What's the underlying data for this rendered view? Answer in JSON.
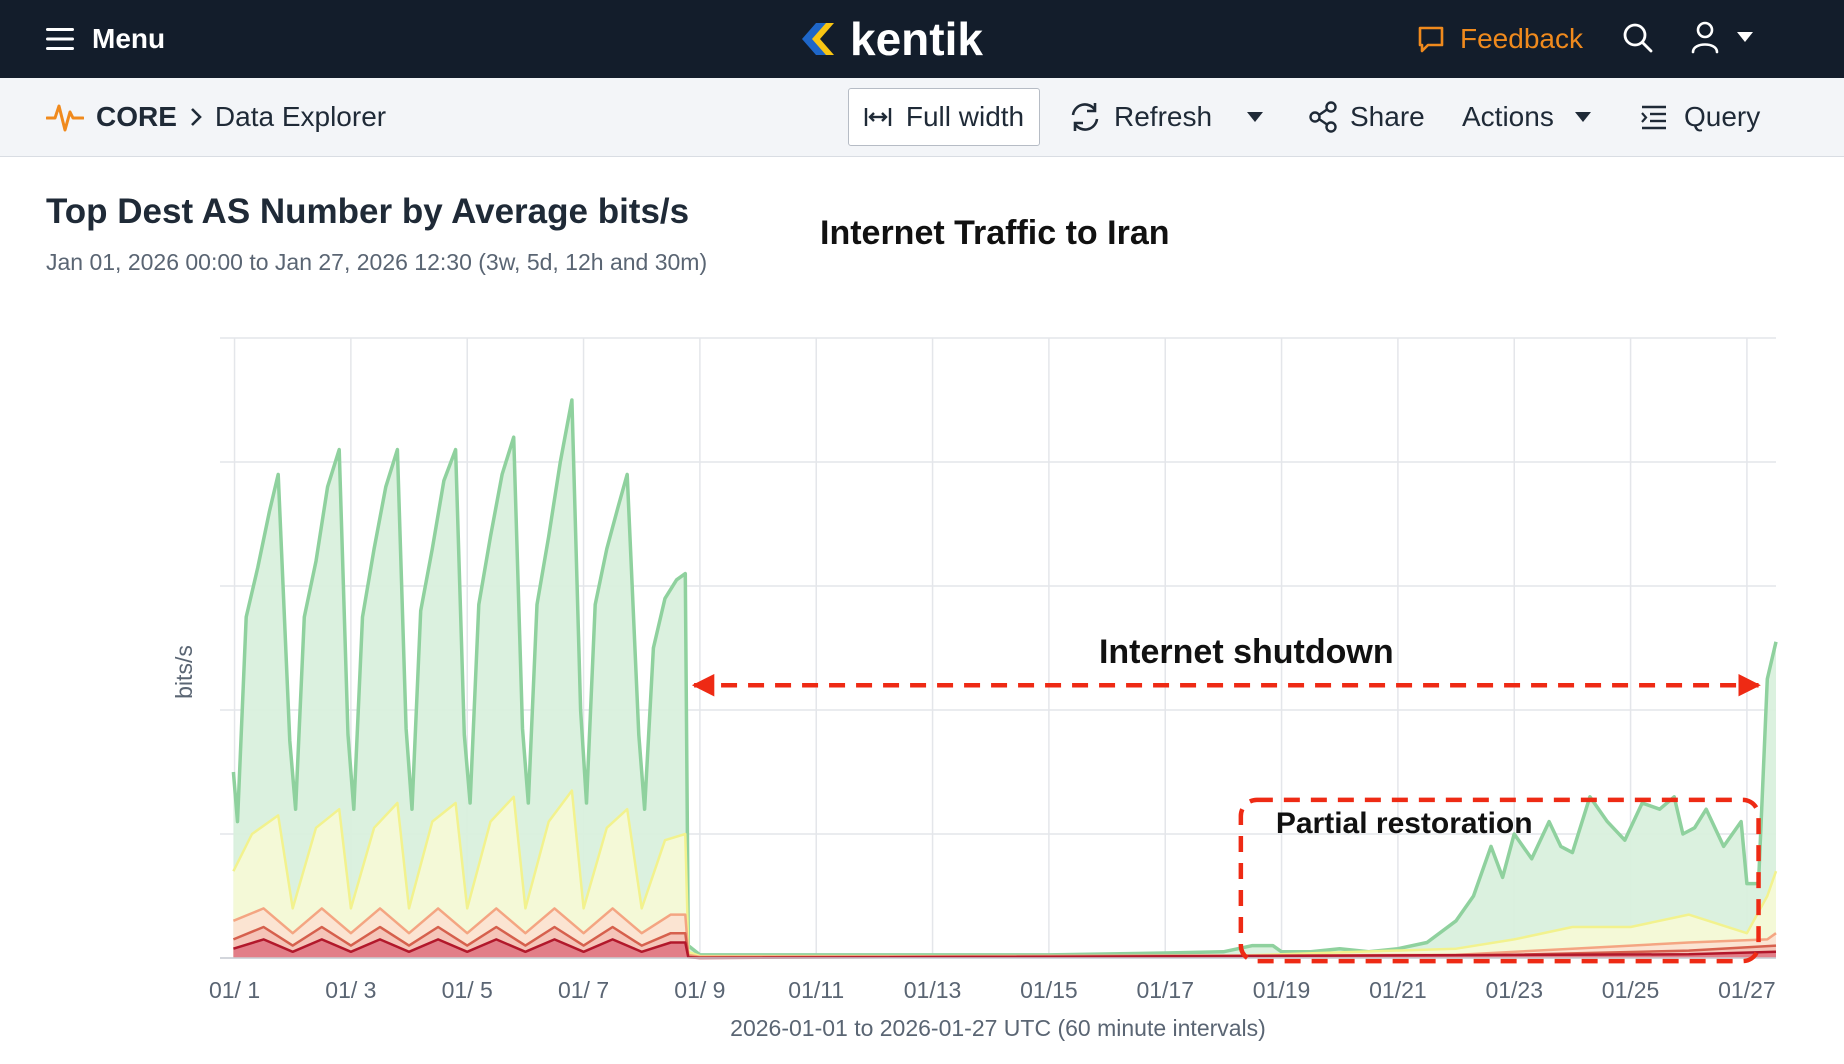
{
  "topbar": {
    "menu_label": "Menu",
    "logo_text": "kentik",
    "feedback_label": "Feedback",
    "brand_color": "#f08a1d"
  },
  "subbar": {
    "section": "CORE",
    "page": "Data Explorer",
    "full_width_label": "Full width",
    "refresh_label": "Refresh",
    "share_label": "Share",
    "actions_label": "Actions",
    "query_label": "Query"
  },
  "chart": {
    "title": "Top Dest AS Number by Average bits/s",
    "subtitle": "Jan 01, 2026 00:00 to Jan 27, 2026 12:30 (3w, 5d, 12h and 30m)",
    "overlay_title": "Internet Traffic to Iran",
    "shutdown_label": "Internet shutdown",
    "restoration_label": "Partial restoration",
    "annotation_color": "#ee2a14"
  },
  "chart_data": {
    "type": "area",
    "title": "Top Dest AS Number by Average bits/s",
    "xlabel": "2026-01-01 to 2026-01-27 UTC (60 minute intervals)",
    "ylabel": "bits/s",
    "x_tick_labels": [
      "01/ 1",
      "01/ 3",
      "01/ 5",
      "01/ 7",
      "01/ 9",
      "01/11",
      "01/13",
      "01/15",
      "01/17",
      "01/19",
      "01/21",
      "01/23",
      "01/25",
      "01/27"
    ],
    "x_tick_days": [
      1,
      3,
      5,
      7,
      9,
      11,
      13,
      15,
      17,
      19,
      21,
      23,
      25,
      27
    ],
    "xlim": [
      0.75,
      27.5
    ],
    "ylim": [
      0,
      100
    ],
    "grid": true,
    "stacked": true,
    "y_units": "relative (no y tick labels shown)",
    "series": [
      {
        "name": "",
        "color": "#8fd19e",
        "fill": "#d9f0dd",
        "points": [
          [
            0.98,
            30
          ],
          [
            1.05,
            22
          ],
          [
            1.2,
            55
          ],
          [
            1.4,
            63
          ],
          [
            1.6,
            72
          ],
          [
            1.75,
            78
          ],
          [
            1.95,
            35
          ],
          [
            2.05,
            24
          ],
          [
            2.2,
            55
          ],
          [
            2.4,
            64
          ],
          [
            2.6,
            76
          ],
          [
            2.8,
            82
          ],
          [
            2.95,
            36
          ],
          [
            3.05,
            24
          ],
          [
            3.2,
            55
          ],
          [
            3.4,
            66
          ],
          [
            3.6,
            76
          ],
          [
            3.8,
            82
          ],
          [
            3.95,
            37
          ],
          [
            4.05,
            24
          ],
          [
            4.2,
            56
          ],
          [
            4.4,
            66
          ],
          [
            4.6,
            77
          ],
          [
            4.8,
            82
          ],
          [
            4.95,
            36
          ],
          [
            5.05,
            25
          ],
          [
            5.2,
            57
          ],
          [
            5.4,
            68
          ],
          [
            5.6,
            78
          ],
          [
            5.8,
            84
          ],
          [
            5.95,
            37
          ],
          [
            6.05,
            25
          ],
          [
            6.2,
            57
          ],
          [
            6.4,
            68
          ],
          [
            6.6,
            80
          ],
          [
            6.8,
            90
          ],
          [
            6.95,
            40
          ],
          [
            7.05,
            25
          ],
          [
            7.2,
            57
          ],
          [
            7.4,
            66
          ],
          [
            7.6,
            73
          ],
          [
            7.75,
            78
          ],
          [
            7.95,
            36
          ],
          [
            8.05,
            24
          ],
          [
            8.2,
            50
          ],
          [
            8.4,
            58
          ],
          [
            8.6,
            61
          ],
          [
            8.75,
            62
          ],
          [
            8.8,
            2
          ],
          [
            9,
            0.5
          ],
          [
            11,
            0.5
          ],
          [
            13,
            0.5
          ],
          [
            15,
            0.5
          ],
          [
            17,
            0.8
          ],
          [
            18,
            1
          ],
          [
            18.5,
            2
          ],
          [
            18.85,
            2
          ],
          [
            19,
            1
          ],
          [
            19.5,
            1
          ],
          [
            20,
            1.5
          ],
          [
            20.5,
            1
          ],
          [
            21,
            1.5
          ],
          [
            21.5,
            2.5
          ],
          [
            22,
            6
          ],
          [
            22.3,
            10
          ],
          [
            22.6,
            18
          ],
          [
            22.8,
            13
          ],
          [
            23,
            20
          ],
          [
            23.3,
            16
          ],
          [
            23.6,
            22
          ],
          [
            23.8,
            18
          ],
          [
            24,
            17
          ],
          [
            24.3,
            26
          ],
          [
            24.6,
            22
          ],
          [
            24.9,
            19
          ],
          [
            25.2,
            25
          ],
          [
            25.5,
            24
          ],
          [
            25.75,
            26
          ],
          [
            25.9,
            20
          ],
          [
            26.1,
            21
          ],
          [
            26.3,
            24
          ],
          [
            26.6,
            18
          ],
          [
            26.9,
            22
          ],
          [
            27.0,
            12
          ],
          [
            27.2,
            12
          ],
          [
            27.35,
            45
          ],
          [
            27.5,
            51
          ]
        ]
      },
      {
        "name": "",
        "color": "#f2f28e",
        "fill": "#f6f9d6",
        "points": [
          [
            0.98,
            14
          ],
          [
            1.3,
            20
          ],
          [
            1.75,
            23
          ],
          [
            2.0,
            8
          ],
          [
            2.4,
            21
          ],
          [
            2.8,
            24
          ],
          [
            3.0,
            8
          ],
          [
            3.4,
            21
          ],
          [
            3.8,
            25
          ],
          [
            4.0,
            8
          ],
          [
            4.4,
            22
          ],
          [
            4.8,
            25
          ],
          [
            5.0,
            8
          ],
          [
            5.4,
            22
          ],
          [
            5.8,
            26
          ],
          [
            6.0,
            8
          ],
          [
            6.4,
            22
          ],
          [
            6.8,
            27
          ],
          [
            7.0,
            8
          ],
          [
            7.4,
            21
          ],
          [
            7.75,
            24
          ],
          [
            8.0,
            8
          ],
          [
            8.4,
            19
          ],
          [
            8.75,
            20
          ],
          [
            8.8,
            1
          ],
          [
            9,
            0.3
          ],
          [
            18,
            0.3
          ],
          [
            22,
            1.5
          ],
          [
            23,
            3
          ],
          [
            24,
            5
          ],
          [
            25,
            5
          ],
          [
            26,
            7
          ],
          [
            27.0,
            4
          ],
          [
            27.35,
            10
          ],
          [
            27.5,
            14
          ]
        ]
      },
      {
        "name": "",
        "color": "#f4a582",
        "fill": "#fbe3d2",
        "points": [
          [
            0.98,
            6
          ],
          [
            1.5,
            8
          ],
          [
            2.0,
            4
          ],
          [
            2.5,
            8
          ],
          [
            3.0,
            4
          ],
          [
            3.5,
            8
          ],
          [
            4.0,
            4
          ],
          [
            4.5,
            8
          ],
          [
            5.0,
            4
          ],
          [
            5.5,
            8
          ],
          [
            6.0,
            4
          ],
          [
            6.5,
            8
          ],
          [
            7.0,
            4
          ],
          [
            7.5,
            8
          ],
          [
            8.0,
            4
          ],
          [
            8.5,
            7
          ],
          [
            8.75,
            7
          ],
          [
            8.8,
            0.5
          ],
          [
            9,
            0.2
          ],
          [
            22,
            0.5
          ],
          [
            24,
            1.5
          ],
          [
            26,
            2.5
          ],
          [
            27.35,
            3
          ],
          [
            27.5,
            4
          ]
        ]
      },
      {
        "name": "",
        "color": "#d6604d",
        "fill": "#f4c3b7",
        "points": [
          [
            0.98,
            3
          ],
          [
            1.5,
            5
          ],
          [
            2.0,
            2
          ],
          [
            2.5,
            5
          ],
          [
            3.0,
            2
          ],
          [
            3.5,
            5
          ],
          [
            4.0,
            2
          ],
          [
            4.5,
            5
          ],
          [
            5.0,
            2
          ],
          [
            5.5,
            5
          ],
          [
            6.0,
            2
          ],
          [
            6.5,
            5
          ],
          [
            7.0,
            2
          ],
          [
            7.5,
            5
          ],
          [
            8.0,
            2
          ],
          [
            8.5,
            4
          ],
          [
            8.75,
            4
          ],
          [
            8.8,
            0.2
          ],
          [
            9,
            0.1
          ],
          [
            22,
            0.3
          ],
          [
            26,
            1.2
          ],
          [
            27.5,
            2
          ]
        ]
      },
      {
        "name": "",
        "color": "#b2182b",
        "fill": "#e07a85",
        "points": [
          [
            0.98,
            1.5
          ],
          [
            1.5,
            3
          ],
          [
            2.0,
            1
          ],
          [
            2.5,
            3
          ],
          [
            3.0,
            1
          ],
          [
            3.5,
            3
          ],
          [
            4.0,
            1
          ],
          [
            4.5,
            3
          ],
          [
            5.0,
            1
          ],
          [
            5.5,
            3
          ],
          [
            6.0,
            1
          ],
          [
            6.5,
            3
          ],
          [
            7.0,
            1
          ],
          [
            7.5,
            3
          ],
          [
            8.0,
            1
          ],
          [
            8.5,
            2.5
          ],
          [
            8.75,
            2.5
          ],
          [
            8.8,
            0.1
          ],
          [
            9,
            0
          ],
          [
            26,
            0.6
          ],
          [
            27.5,
            1
          ]
        ]
      }
    ],
    "annotations": [
      {
        "type": "double_arrow",
        "label": "Internet shutdown",
        "x_from": 8.9,
        "x_to": 27.2,
        "y": 44
      },
      {
        "type": "box",
        "label": "Partial restoration",
        "x_from": 18.3,
        "x_to": 27.2,
        "y_from": -0.5,
        "y_to": 25.5
      }
    ]
  }
}
